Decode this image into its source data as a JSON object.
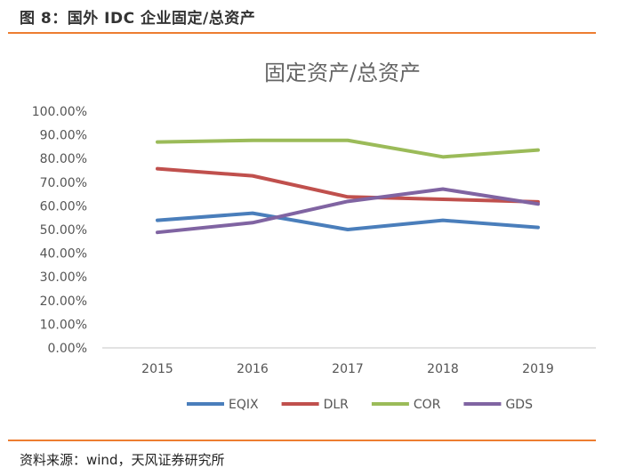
{
  "figure_title": "图 8：国外 IDC 企业固定/总资产",
  "source": "资料来源：wind，天风证券研究所",
  "chart_data": {
    "type": "line",
    "title": "固定资产/总资产",
    "xlabel": "",
    "ylabel": "",
    "categories": [
      "2015",
      "2016",
      "2017",
      "2018",
      "2019"
    ],
    "ylim": [
      0,
      100
    ],
    "yticks": [
      "0.00%",
      "10.00%",
      "20.00%",
      "30.00%",
      "40.00%",
      "50.00%",
      "60.00%",
      "70.00%",
      "80.00%",
      "90.00%",
      "100.00%"
    ],
    "grid": false,
    "legend": "bottom",
    "series": [
      {
        "name": "EQIX",
        "color": "#4a7ebb",
        "values": [
          53.9,
          56.9,
          50.0,
          53.9,
          50.9
        ]
      },
      {
        "name": "DLR",
        "color": "#c0504d",
        "values": [
          75.7,
          72.7,
          63.8,
          62.8,
          61.7
        ]
      },
      {
        "name": "COR",
        "color": "#9bbb59",
        "values": [
          87.0,
          87.7,
          87.7,
          80.7,
          83.6
        ]
      },
      {
        "name": "GDS",
        "color": "#8064a2",
        "values": [
          48.8,
          52.9,
          61.9,
          67.1,
          60.8
        ]
      }
    ]
  }
}
